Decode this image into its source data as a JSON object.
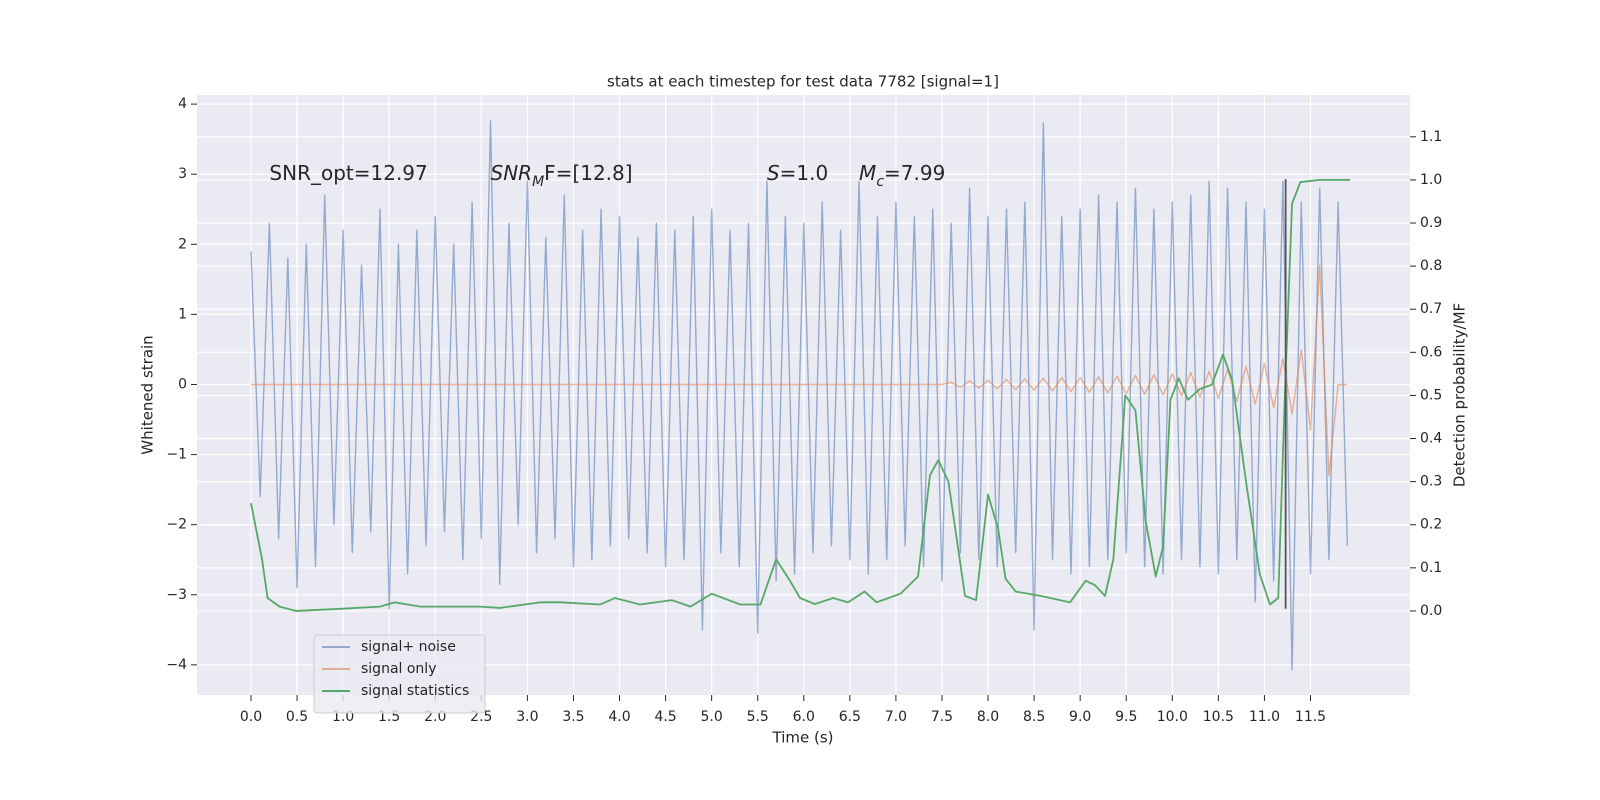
{
  "chart_data": {
    "type": "line",
    "title": "stats at each timestep for test data 7782 [signal=1]",
    "xlabel": "Time (s)",
    "ylabel": "Whitened strain",
    "y2label": "Detection probability/MF",
    "xlim": [
      -0.586,
      12.58
    ],
    "ylim": [
      -4.43,
      4.13
    ],
    "y2lim": [
      -0.195,
      1.197
    ],
    "xticks": [
      {
        "value": 0,
        "label": "0.0"
      },
      {
        "value": 0.5,
        "label": "0.5"
      },
      {
        "value": 1,
        "label": "1.0"
      },
      {
        "value": 1.5,
        "label": "1.5"
      },
      {
        "value": 2,
        "label": "2.0"
      },
      {
        "value": 2.5,
        "label": "2.5"
      },
      {
        "value": 3,
        "label": "3.0"
      },
      {
        "value": 3.5,
        "label": "3.5"
      },
      {
        "value": 4,
        "label": "4.0"
      },
      {
        "value": 4.5,
        "label": "4.5"
      },
      {
        "value": 5,
        "label": "5.0"
      },
      {
        "value": 5.5,
        "label": "5.5"
      },
      {
        "value": 6,
        "label": "6.0"
      },
      {
        "value": 6.5,
        "label": "6.5"
      },
      {
        "value": 7,
        "label": "7.0"
      },
      {
        "value": 7.5,
        "label": "7.5"
      },
      {
        "value": 8,
        "label": "8.0"
      },
      {
        "value": 8.5,
        "label": "8.5"
      },
      {
        "value": 9,
        "label": "9.0"
      },
      {
        "value": 9.5,
        "label": "9.5"
      },
      {
        "value": 10,
        "label": "10.0"
      },
      {
        "value": 10.5,
        "label": "10.5"
      },
      {
        "value": 11,
        "label": "11.0"
      },
      {
        "value": 11.5,
        "label": "11.5"
      }
    ],
    "yticks": [
      {
        "value": -4,
        "label": "−4"
      },
      {
        "value": -3,
        "label": "−3"
      },
      {
        "value": -2,
        "label": "−2"
      },
      {
        "value": -1,
        "label": "−1"
      },
      0,
      1,
      2,
      3,
      4
    ],
    "y2ticks": [
      {
        "value": 0,
        "label": "0.0"
      },
      {
        "value": 0.1,
        "label": "0.1"
      },
      {
        "value": 0.2,
        "label": "0.2"
      },
      {
        "value": 0.3,
        "label": "0.3"
      },
      {
        "value": 0.4,
        "label": "0.4"
      },
      {
        "value": 0.5,
        "label": "0.5"
      },
      {
        "value": 0.6,
        "label": "0.6"
      },
      {
        "value": 0.7,
        "label": "0.7"
      },
      {
        "value": 0.8,
        "label": "0.8"
      },
      {
        "value": 0.9,
        "label": "0.9"
      },
      {
        "value": 1,
        "label": "1.0"
      },
      {
        "value": 1.1,
        "label": "1.1"
      }
    ],
    "grid": true,
    "legend": "lower left",
    "x": [
      0,
      0.1,
      0.2,
      0.3,
      0.4,
      0.5,
      0.6,
      0.7,
      0.8,
      0.9,
      1,
      1.1,
      1.2,
      1.3,
      1.4,
      1.5,
      1.6,
      1.7,
      1.8,
      1.9,
      2,
      2.1,
      2.2,
      2.3,
      2.4,
      2.5,
      2.6,
      2.7,
      2.8,
      2.9,
      3,
      3.1,
      3.2,
      3.3,
      3.4,
      3.5,
      3.6,
      3.7,
      3.8,
      3.9,
      4,
      4.1,
      4.2,
      4.3,
      4.4,
      4.5,
      4.6,
      4.7,
      4.8,
      4.9,
      5,
      5.1,
      5.2,
      5.3,
      5.4,
      5.5,
      5.6,
      5.7,
      5.8,
      5.9,
      6,
      6.1,
      6.2,
      6.3,
      6.4,
      6.5,
      6.6,
      6.7,
      6.8,
      6.9,
      7,
      7.1,
      7.2,
      7.3,
      7.4,
      7.5,
      7.6,
      7.7,
      7.8,
      7.9,
      8,
      8.1,
      8.2,
      8.3,
      8.4,
      8.5,
      8.6,
      8.7,
      8.8,
      8.9,
      9,
      9.1,
      9.2,
      9.3,
      9.4,
      9.5,
      9.6,
      9.7,
      9.8,
      9.9,
      10,
      10.1,
      10.2,
      10.3,
      10.4,
      10.5,
      10.6,
      10.7,
      10.8,
      10.9,
      11,
      11.1,
      11.2,
      11.3,
      11.4,
      11.5,
      11.6,
      11.7,
      11.8,
      11.9
    ],
    "series": [
      {
        "name": "signal+ noise",
        "color": "#4c72b0",
        "opacity": 0.55,
        "values": [
          1.9,
          -1.6,
          2.3,
          -2.2,
          1.8,
          -2.9,
          2.0,
          -2.6,
          2.7,
          -2.0,
          2.2,
          -2.4,
          1.7,
          -2.1,
          2.5,
          -3.2,
          2.0,
          -2.7,
          2.2,
          -2.3,
          2.4,
          -2.1,
          2.0,
          -2.5,
          2.6,
          -2.2,
          3.76,
          -2.85,
          2.3,
          -2.0,
          2.9,
          -2.4,
          2.1,
          -2.2,
          2.7,
          -2.6,
          2.2,
          -2.5,
          2.5,
          -2.3,
          2.4,
          -2.2,
          2.1,
          -2.4,
          2.3,
          -2.6,
          2.2,
          -2.5,
          2.4,
          -3.5,
          2.5,
          -2.4,
          2.2,
          -2.6,
          2.3,
          -3.55,
          2.9,
          -2.8,
          2.4,
          -2.7,
          2.3,
          -2.4,
          2.6,
          -2.3,
          2.2,
          -2.5,
          2.9,
          -2.7,
          2.4,
          -2.5,
          2.6,
          -2.3,
          2.4,
          -2.6,
          2.5,
          -2.8,
          2.3,
          -2.4,
          2.8,
          -2.5,
          2.4,
          -2.6,
          2.5,
          -2.4,
          2.6,
          -3.5,
          3.73,
          -2.5,
          2.4,
          -2.7,
          2.5,
          -2.6,
          2.7,
          -2.5,
          2.6,
          -2.4,
          2.8,
          -2.6,
          2.5,
          -2.7,
          2.6,
          -2.5,
          2.7,
          -2.6,
          2.9,
          -2.7,
          2.8,
          -2.5,
          2.6,
          -3.1,
          2.5,
          -2.8,
          2.9,
          -4.07,
          2.6,
          -2.7,
          2.8,
          -2.5,
          2.6,
          -2.3
        ]
      },
      {
        "name": "signal only",
        "color": "#dd8452",
        "opacity": 0.6,
        "values": [
          0,
          0,
          0,
          0,
          0,
          0,
          0,
          0,
          0,
          0,
          0,
          0,
          0,
          0,
          0,
          0,
          0,
          0,
          0,
          0,
          0,
          0,
          0,
          0,
          0,
          0,
          0,
          0,
          0,
          0,
          0,
          0,
          0,
          0,
          0,
          0,
          0,
          0,
          0,
          0,
          0,
          0,
          0,
          0,
          0,
          0,
          0,
          0,
          0,
          0,
          0,
          0,
          0,
          0,
          0,
          0,
          0,
          0,
          0,
          0,
          0,
          0,
          0,
          0,
          0,
          0,
          0,
          0,
          0,
          0,
          0,
          0,
          0,
          0,
          0,
          0,
          0.03,
          -0.04,
          0.05,
          -0.05,
          0.06,
          -0.06,
          0.07,
          -0.07,
          0.08,
          -0.08,
          0.09,
          -0.09,
          0.1,
          -0.1,
          0.1,
          -0.11,
          0.11,
          -0.12,
          0.12,
          -0.13,
          0.13,
          -0.14,
          0.14,
          -0.15,
          0.15,
          -0.16,
          0.17,
          -0.18,
          0.19,
          -0.2,
          0.22,
          -0.24,
          0.26,
          -0.28,
          0.3,
          -0.33,
          0.37,
          -0.42,
          0.5,
          -0.65,
          1.7,
          -1.3,
          0,
          0
        ]
      },
      {
        "name": "signal statistics",
        "color": "#55a868",
        "opacity": 1,
        "axis": "y2",
        "x": [
          0,
          0.12,
          0.18,
          0.31,
          0.49,
          0.97,
          1.4,
          1.56,
          1.84,
          2.49,
          2.7,
          3.14,
          3.36,
          3.79,
          3.95,
          4.22,
          4.57,
          4.77,
          5.0,
          5.31,
          5.53,
          5.7,
          5.85,
          5.96,
          6.12,
          6.32,
          6.48,
          6.66,
          6.79,
          7.05,
          7.24,
          7.37,
          7.46,
          7.57,
          7.75,
          7.87,
          8.0,
          8.11,
          8.19,
          8.3,
          8.57,
          8.89,
          9.06,
          9.16,
          9.27,
          9.36,
          9.49,
          9.6,
          9.71,
          9.82,
          9.9,
          9.98,
          10.07,
          10.17,
          10.3,
          10.43,
          10.55,
          10.65,
          10.8,
          10.95,
          11.06,
          11.15,
          11.22,
          11.3,
          11.39,
          11.6,
          11.93
        ],
        "values": [
          0.25,
          0.12,
          0.03,
          0.01,
          0.0,
          0.005,
          0.01,
          0.02,
          0.01,
          0.01,
          0.007,
          0.02,
          0.02,
          0.015,
          0.03,
          0.015,
          0.025,
          0.01,
          0.04,
          0.015,
          0.015,
          0.12,
          0.07,
          0.03,
          0.016,
          0.03,
          0.02,
          0.045,
          0.02,
          0.04,
          0.08,
          0.315,
          0.35,
          0.3,
          0.035,
          0.025,
          0.27,
          0.19,
          0.075,
          0.045,
          0.035,
          0.02,
          0.07,
          0.06,
          0.035,
          0.12,
          0.5,
          0.465,
          0.21,
          0.08,
          0.15,
          0.49,
          0.54,
          0.49,
          0.515,
          0.525,
          0.595,
          0.535,
          0.3,
          0.085,
          0.015,
          0.03,
          0.49,
          0.945,
          0.995,
          1.0,
          1.0
        ]
      }
    ],
    "vline": {
      "x": 11.23,
      "ymin": -3.2,
      "ymax": 2.93,
      "color": "#555555"
    },
    "annotations": [
      {
        "x": 0.2,
        "y": 3,
        "parts": [
          {
            "text": "SNR_opt=12.97",
            "style": "normal"
          }
        ]
      },
      {
        "x": 2.6,
        "y": 3,
        "parts": [
          {
            "text": "SNR",
            "style": "italic"
          },
          {
            "text": "M",
            "style": "sub"
          },
          {
            "text": "F=[12.8]",
            "style": "normal"
          }
        ]
      },
      {
        "x": 5.6,
        "y": 3,
        "parts": [
          {
            "text": "S",
            "style": "italic"
          },
          {
            "text": "=1.0",
            "style": "normal"
          }
        ]
      },
      {
        "x": 6.6,
        "y": 3,
        "parts": [
          {
            "text": "M",
            "style": "italic"
          },
          {
            "text": "c",
            "style": "sub"
          },
          {
            "text": "=7.99",
            "style": "normal"
          }
        ]
      }
    ]
  }
}
